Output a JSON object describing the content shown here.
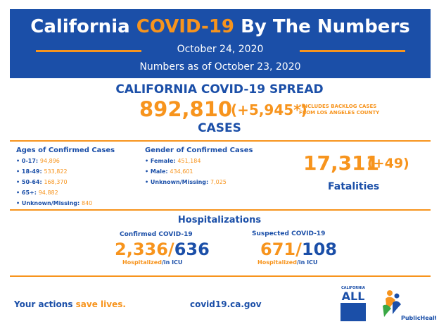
{
  "header": {
    "title_pre": "California ",
    "title_accent": "COVID-19",
    "title_post": " By The Numbers",
    "date": "October 24, 2020",
    "as_of": "Numbers as of October 23, 2020"
  },
  "spread": {
    "title": "CALIFORNIA COVID-19 SPREAD",
    "cases_total": "892,810",
    "cases_delta": "(+5,945*)",
    "backlog_note_1": "*INCLUDES BACKLOG CASES",
    "backlog_note_2": "FROM LOS ANGELES COUNTY",
    "cases_label": "CASES"
  },
  "ages": {
    "heading": "Ages of Confirmed Cases",
    "items": [
      {
        "label": "• 0-17: ",
        "value": "94,896"
      },
      {
        "label": "• 18-49: ",
        "value": "533,822"
      },
      {
        "label": "• 50-64: ",
        "value": "168,370"
      },
      {
        "label": "• 65+: ",
        "value": "94,882"
      },
      {
        "label": "• Unknown/Missing: ",
        "value": "840"
      }
    ]
  },
  "gender": {
    "heading": "Gender of Confirmed Cases",
    "items": [
      {
        "label": "• Female: ",
        "value": "451,184"
      },
      {
        "label": "• Male: ",
        "value": "434,601"
      },
      {
        "label": "• Unknown/Missing: ",
        "value": "7,025"
      }
    ]
  },
  "fatalities": {
    "total": "17,311",
    "delta": "(+49)",
    "label": "Fatalities"
  },
  "hospitalizations": {
    "title": "Hospitalizations",
    "confirmed": {
      "label": "Confirmed COVID-19",
      "hospitalized": "2,336",
      "sep": "/",
      "icu": "636",
      "cap_hosp": "Hospitalized",
      "cap_icu": "/in ICU"
    },
    "suspected": {
      "label": "Suspected COVID-19",
      "hospitalized": "671",
      "sep": "/",
      "icu": "108",
      "cap_hosp": "Hospitalized",
      "cap_icu": "/in ICU"
    }
  },
  "footer": {
    "actions_pre": "Your actions ",
    "actions_accent": "save lives.",
    "url": "covid19.ca.gov",
    "ca_logo_top": "CALIFORNIA",
    "ca_logo_all": "ALL",
    "ph_logo": "PublicHealth"
  },
  "colors": {
    "brand_blue": "#1b4fa8",
    "accent_orange": "#f7941d"
  }
}
